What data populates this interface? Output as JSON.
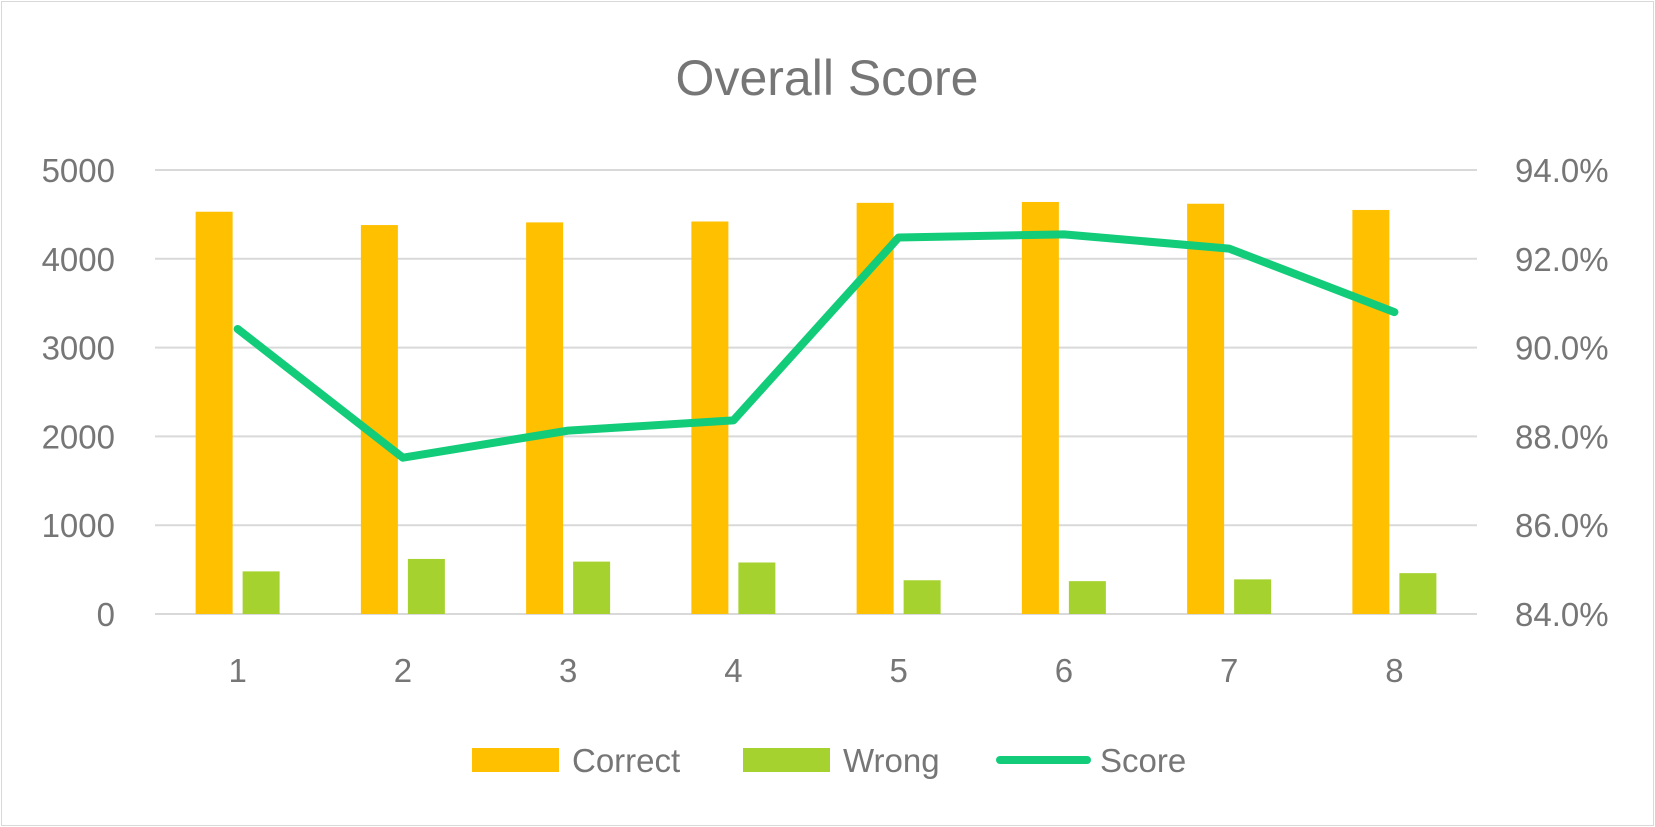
{
  "chart_data": {
    "type": "bar",
    "title": "Overall Score",
    "categories": [
      "1",
      "2",
      "3",
      "4",
      "5",
      "6",
      "7",
      "8"
    ],
    "series": [
      {
        "name": "Correct",
        "type": "bar",
        "axis": "left",
        "color": "#ffc000",
        "values": [
          4530,
          4380,
          4410,
          4420,
          4630,
          4640,
          4620,
          4550
        ]
      },
      {
        "name": "Wrong",
        "type": "bar",
        "axis": "left",
        "color": "#a5d22e",
        "values": [
          480,
          620,
          590,
          580,
          380,
          370,
          390,
          460
        ]
      },
      {
        "name": "Score",
        "type": "line",
        "axis": "right",
        "color": "#12cc7a",
        "values": [
          0.9042,
          0.8752,
          0.8813,
          0.8836,
          0.9248,
          0.9255,
          0.9223,
          0.908
        ]
      }
    ],
    "y_left": {
      "min": 0,
      "max": 5000,
      "ticks": [
        "0",
        "1000",
        "2000",
        "3000",
        "4000",
        "5000"
      ]
    },
    "y_right": {
      "min": 0.84,
      "max": 0.94,
      "ticks": [
        "84.0%",
        "86.0%",
        "88.0%",
        "90.0%",
        "92.0%",
        "94.0%"
      ]
    },
    "gridlines": true,
    "legend_position": "bottom",
    "colors": {
      "text": "#767676",
      "grid": "#d9d9d9",
      "border": "#d9d9d9"
    }
  }
}
